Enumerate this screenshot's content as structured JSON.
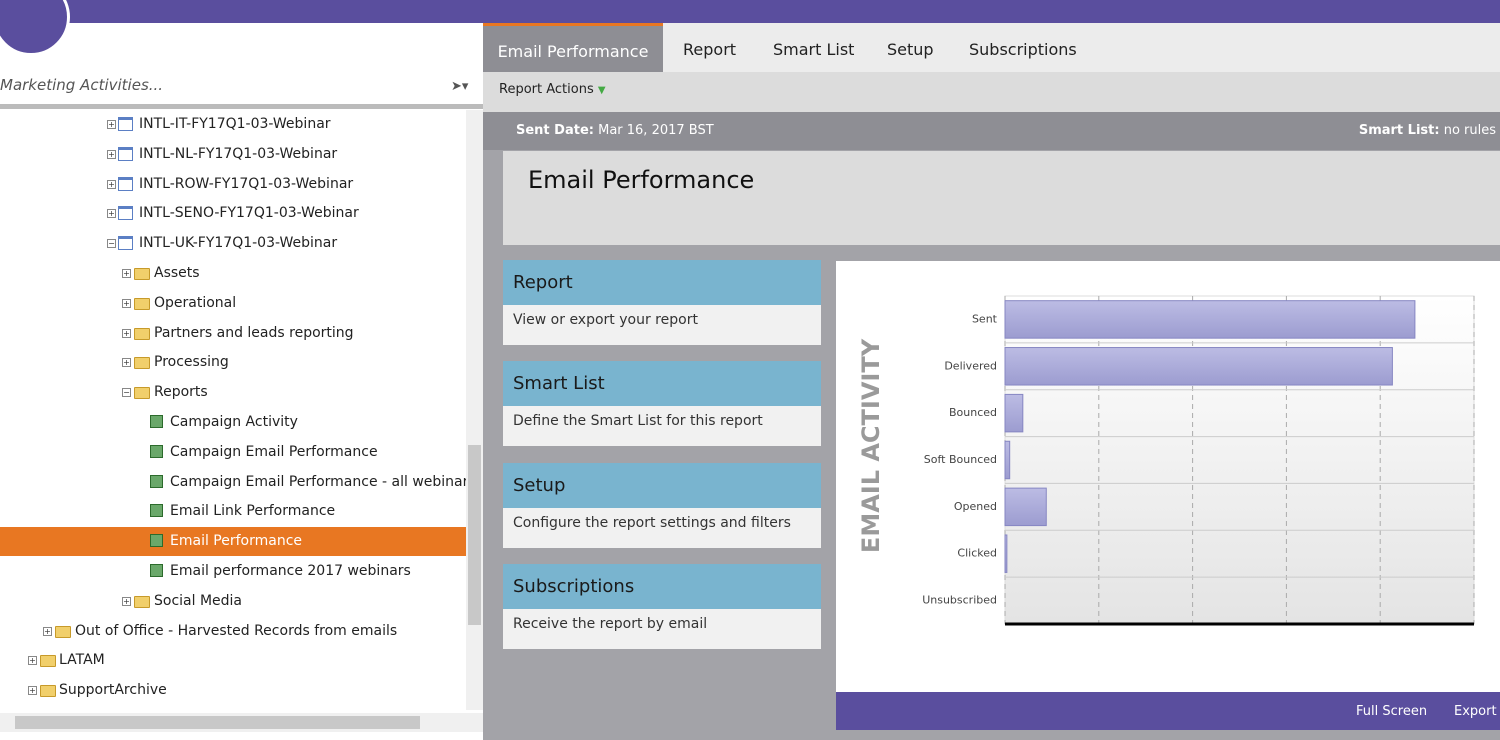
{
  "sidebar": {
    "search_placeholder": "Marketing Activities...",
    "tree": [
      "INTL-IT-FY17Q1-03-Webinar",
      "INTL-NL-FY17Q1-03-Webinar",
      "INTL-ROW-FY17Q1-03-Webinar",
      "INTL-SENO-FY17Q1-03-Webinar",
      "INTL-UK-FY17Q1-03-Webinar",
      "Assets",
      "Operational",
      "Partners and leads reporting",
      "Processing",
      "Reports",
      "Campaign Activity",
      "Campaign Email Performance",
      "Campaign Email Performance - all webinars",
      "Email Link Performance",
      "Email Performance",
      "Email performance 2017 webinars",
      "Social Media",
      "Out of Office - Harvested Records from emails",
      "LATAM",
      "SupportArchive"
    ]
  },
  "tabs": [
    "Email Performance",
    "Report",
    "Smart List",
    "Setup",
    "Subscriptions"
  ],
  "toolbar": {
    "report_actions": "Report Actions"
  },
  "info": {
    "sent_date_label": "Sent Date:",
    "sent_date": "Mar 16, 2017 BST",
    "smart_list_label": "Smart List:",
    "smart_list": "no rules"
  },
  "page_title": "Email Performance",
  "cards": [
    {
      "title": "Report",
      "description": "View or export your report"
    },
    {
      "title": "Smart List",
      "description": "Define the Smart List for this report"
    },
    {
      "title": "Setup",
      "description": "Configure the report settings and filters"
    },
    {
      "title": "Subscriptions",
      "description": "Receive the report by email"
    }
  ],
  "chart_data": {
    "type": "hbar",
    "title": "EMAIL ACTIVITY",
    "categories": [
      "Sent",
      "Delivered",
      "Bounced",
      "Soft Bounced",
      "Opened",
      "Clicked",
      "Unsubscribed"
    ],
    "values": [
      4.37,
      4.13,
      0.19,
      0.05,
      0.44,
      0.02,
      0
    ],
    "color": "#a9a9d9",
    "xlim": [
      0,
      5
    ],
    "xticks": [
      0,
      1,
      2,
      3,
      4,
      5
    ],
    "grid": true
  },
  "footer": {
    "full_screen": "Full Screen",
    "export": "Export"
  }
}
